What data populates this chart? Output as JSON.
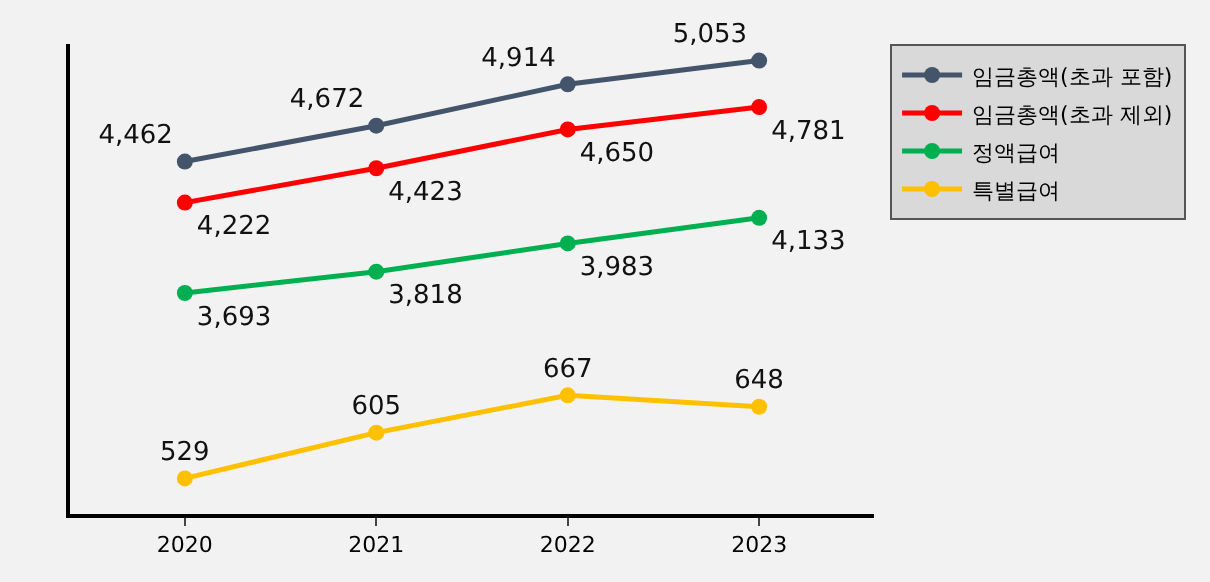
{
  "chart_data": {
    "type": "line",
    "categories": [
      "2020",
      "2021",
      "2022",
      "2023"
    ],
    "series": [
      {
        "name": "임금총액(초과 포함)",
        "color": "#44546a",
        "values": [
          4462,
          4672,
          4914,
          5053
        ],
        "value_labels": [
          "4,462",
          "4,672",
          "4,914",
          "5,053"
        ]
      },
      {
        "name": "임금총액(초과 제외)",
        "color": "#ff0000",
        "values": [
          4222,
          4423,
          4650,
          4781
        ],
        "value_labels": [
          "4,222",
          "4,423",
          "4,650",
          "4,781"
        ]
      },
      {
        "name": "정액급여",
        "color": "#00b050",
        "values": [
          3693,
          3818,
          3983,
          4133
        ],
        "value_labels": [
          "3,693",
          "3,818",
          "3,983",
          "4,133"
        ]
      },
      {
        "name": "특별급여",
        "color": "#ffc000",
        "values": [
          529,
          605,
          667,
          648
        ],
        "value_labels": [
          "529",
          "605",
          "667",
          "648"
        ],
        "axis": "y2"
      }
    ],
    "ylim": [
      2400,
      5150
    ],
    "y2lim": [
      470,
      1250
    ],
    "marker": "circle",
    "line_style": "solid",
    "grid": false,
    "legend": "top right",
    "tick_labels": "x"
  }
}
